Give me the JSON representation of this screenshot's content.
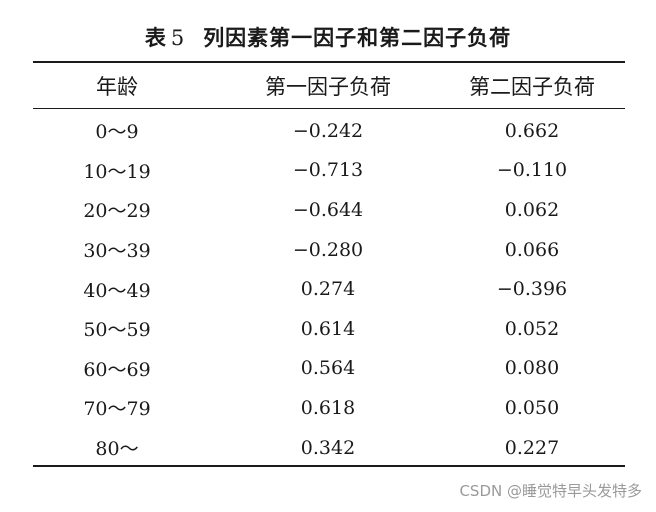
{
  "title": {
    "label": "表",
    "number": "5",
    "text": "列因素第一因子和第二因子负荷"
  },
  "table": {
    "headers": [
      "年龄",
      "第一因子负荷",
      "第二因子负荷"
    ],
    "rows": [
      [
        "0～9",
        "−0.242",
        "0.662"
      ],
      [
        "10～19",
        "−0.713",
        "−0.110"
      ],
      [
        "20～29",
        "−0.644",
        "0.062"
      ],
      [
        "30～39",
        "−0.280",
        "0.066"
      ],
      [
        "40～49",
        "0.274",
        "−0.396"
      ],
      [
        "50～59",
        "0.614",
        "0.052"
      ],
      [
        "60～69",
        "0.564",
        "0.080"
      ],
      [
        "70～79",
        "0.618",
        "0.050"
      ],
      [
        "80～",
        "0.342",
        "0.227"
      ]
    ]
  },
  "watermark": "CSDN @睡觉特早头发特多"
}
